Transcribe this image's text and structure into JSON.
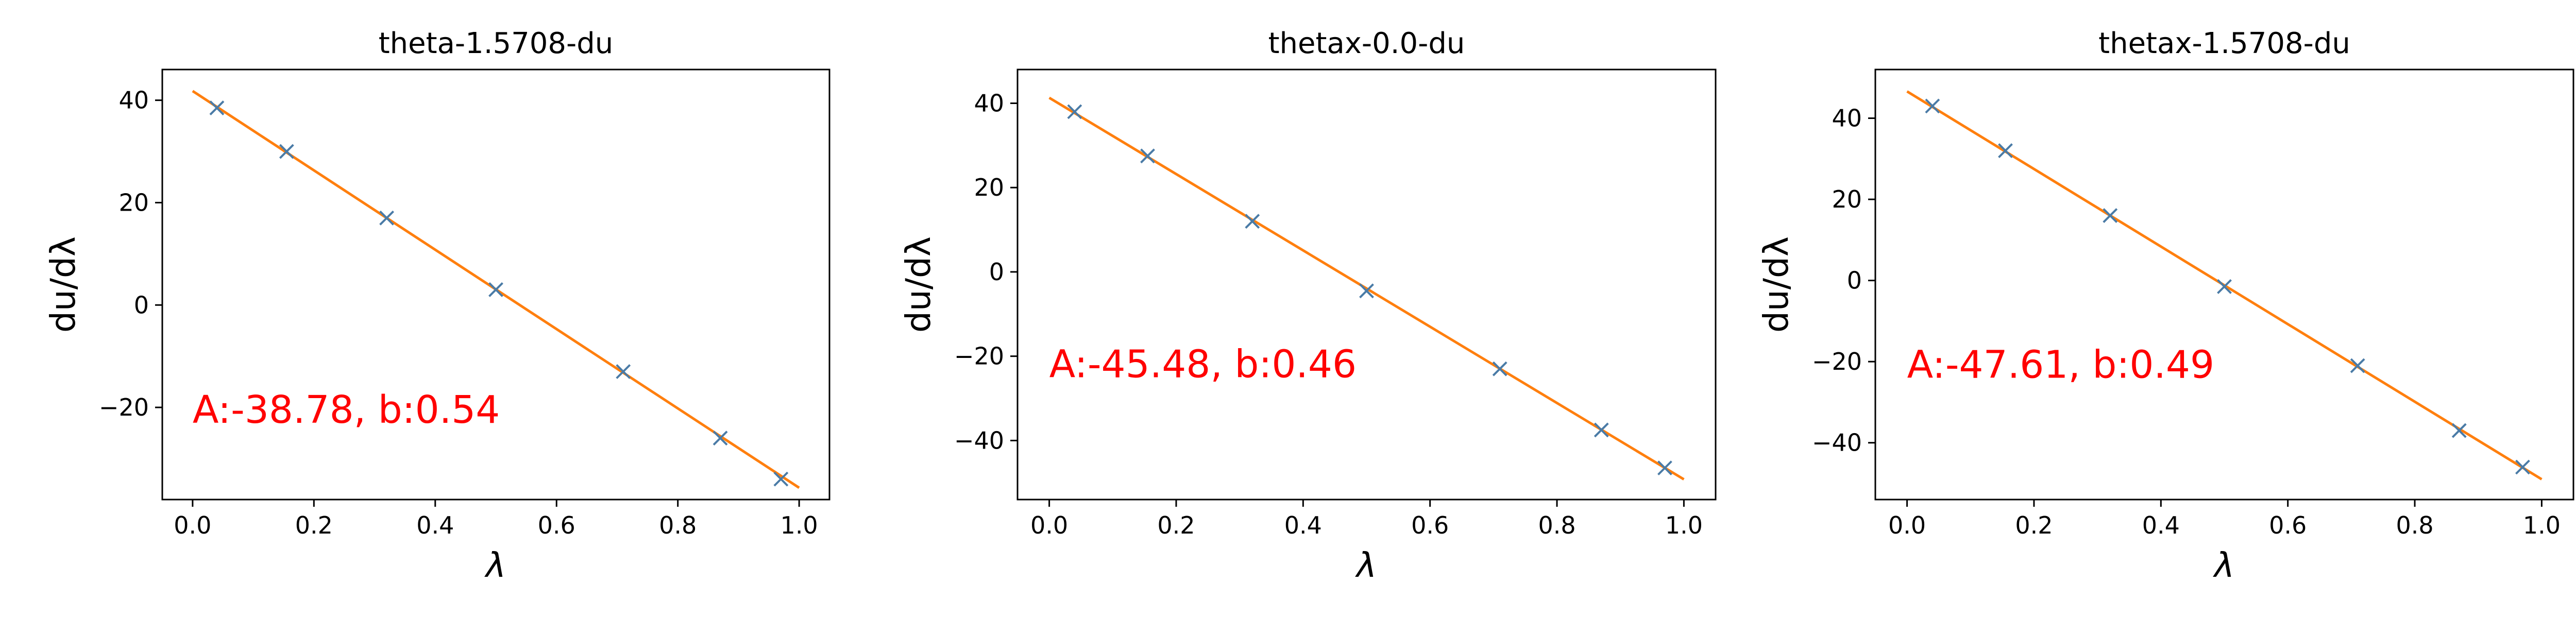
{
  "colors": {
    "marker": "#4a7ba6",
    "fit_line": "#ff7f0e",
    "annotation": "#ff0000",
    "axes": "#000000"
  },
  "chart_data": [
    {
      "type": "line",
      "title": "theta-1.5708-du",
      "xlabel": "λ",
      "ylabel": "du/dλ",
      "xlim": [
        -0.05,
        1.05
      ],
      "ylim": [
        -38,
        46
      ],
      "xticks": [
        0.0,
        0.2,
        0.4,
        0.6,
        0.8,
        1.0
      ],
      "xtick_labels": [
        "0.0",
        "0.2",
        "0.4",
        "0.6",
        "0.8",
        "1.0"
      ],
      "yticks": [
        -20,
        0,
        20,
        40
      ],
      "ytick_labels": [
        "−20",
        "0",
        "20",
        "40"
      ],
      "annotation": "A:-38.78, b:0.54",
      "annotation_pos": [
        0.0,
        -23
      ],
      "series": [
        {
          "kind": "scatter",
          "marker": "x",
          "x": [
            0.04,
            0.155,
            0.32,
            0.5,
            0.71,
            0.87,
            0.97
          ],
          "y": [
            38.5,
            30.0,
            17.0,
            3.0,
            -13.0,
            -26.0,
            -34.0
          ]
        },
        {
          "kind": "line",
          "x": [
            0.0,
            1.0
          ],
          "y": [
            41.8,
            -35.7
          ]
        }
      ]
    },
    {
      "type": "line",
      "title": "thetax-0.0-du",
      "xlabel": "λ",
      "ylabel": "du/dλ",
      "xlim": [
        -0.05,
        1.05
      ],
      "ylim": [
        -54,
        48
      ],
      "xticks": [
        0.0,
        0.2,
        0.4,
        0.6,
        0.8,
        1.0
      ],
      "xtick_labels": [
        "0.0",
        "0.2",
        "0.4",
        "0.6",
        "0.8",
        "1.0"
      ],
      "yticks": [
        -40,
        -20,
        0,
        20,
        40
      ],
      "ytick_labels": [
        "−40",
        "−20",
        "0",
        "20",
        "40"
      ],
      "annotation": "A:-45.48, b:0.46",
      "annotation_pos": [
        0.0,
        -25
      ],
      "series": [
        {
          "kind": "scatter",
          "marker": "x",
          "x": [
            0.04,
            0.155,
            0.32,
            0.5,
            0.71,
            0.87,
            0.97
          ],
          "y": [
            38.0,
            27.5,
            12.0,
            -4.5,
            -23.0,
            -37.5,
            -46.5
          ]
        },
        {
          "kind": "line",
          "x": [
            0.0,
            1.0
          ],
          "y": [
            41.3,
            -49.2
          ]
        }
      ]
    },
    {
      "type": "line",
      "title": "thetax-1.5708-du",
      "xlabel": "λ",
      "ylabel": "du/dλ",
      "xlim": [
        -0.05,
        1.05
      ],
      "ylim": [
        -54,
        52
      ],
      "xticks": [
        0.0,
        0.2,
        0.4,
        0.6,
        0.8,
        1.0
      ],
      "xtick_labels": [
        "0.0",
        "0.2",
        "0.4",
        "0.6",
        "0.8",
        "1.0"
      ],
      "yticks": [
        -40,
        -20,
        0,
        20,
        40
      ],
      "ytick_labels": [
        "−40",
        "−20",
        "0",
        "20",
        "40"
      ],
      "annotation": "A:-47.61, b:0.49",
      "annotation_pos": [
        0.0,
        -24
      ],
      "series": [
        {
          "kind": "scatter",
          "marker": "x",
          "x": [
            0.04,
            0.155,
            0.32,
            0.5,
            0.71,
            0.87,
            0.97
          ],
          "y": [
            43.0,
            32.0,
            16.0,
            -1.5,
            -21.0,
            -37.0,
            -46.0
          ]
        },
        {
          "kind": "line",
          "x": [
            0.0,
            1.0
          ],
          "y": [
            46.6,
            -49.0
          ]
        }
      ]
    }
  ]
}
